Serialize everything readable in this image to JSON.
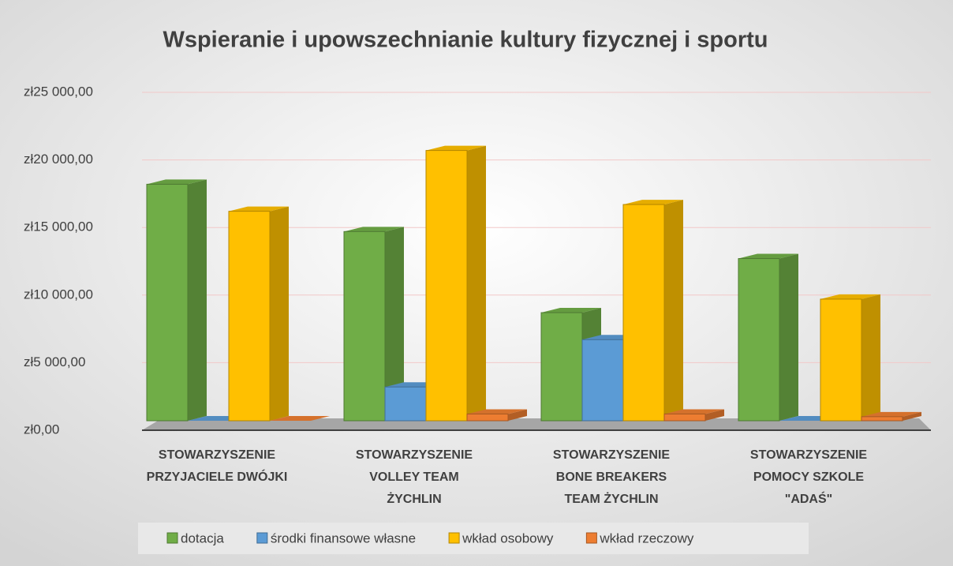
{
  "chart_data": {
    "type": "bar3d",
    "title": "Wspieranie i upowszechnianie kultury fizycznej i sportu",
    "categories": [
      [
        "STOWARZYSZENIE",
        "PRZYJACIELE DWÓJKI"
      ],
      [
        "STOWARZYSZENIE",
        "VOLLEY TEAM",
        "ŻYCHLIN"
      ],
      [
        "STOWARZYSZENIE",
        "BONE BREAKERS",
        "TEAM ŻYCHLIN"
      ],
      [
        "STOWARZYSZENIE",
        "POMOCY SZKOLE",
        "\"ADAŚ\""
      ]
    ],
    "series": [
      {
        "name": "dotacja",
        "color": "#70ad47",
        "values": [
          17500,
          14000,
          8000,
          12000
        ]
      },
      {
        "name": "środki finansowe własne",
        "color": "#5b9bd5",
        "values": [
          0,
          2500,
          6000,
          0
        ]
      },
      {
        "name": "wkład osobowy",
        "color": "#ffc000",
        "values": [
          15500,
          20000,
          16000,
          9000
        ]
      },
      {
        "name": "wkład rzeczowy",
        "color": "#ed7d31",
        "values": [
          0,
          500,
          500,
          300
        ]
      }
    ],
    "ylim": [
      0,
      25000
    ],
    "yticks": [
      {
        "value": 0,
        "label": "zł0,00"
      },
      {
        "value": 5000,
        "label": "zł5 000,00"
      },
      {
        "value": 10000,
        "label": "zł10 000,00"
      },
      {
        "value": 15000,
        "label": "zł15 000,00"
      },
      {
        "value": 20000,
        "label": "zł20 000,00"
      },
      {
        "value": 25000,
        "label": "zł25 000,00"
      }
    ],
    "grid": true,
    "legend": "bottom"
  }
}
